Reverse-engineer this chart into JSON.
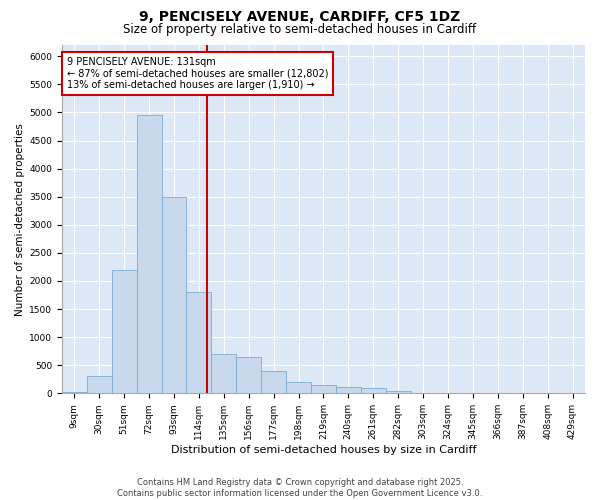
{
  "title": "9, PENCISELY AVENUE, CARDIFF, CF5 1DZ",
  "subtitle": "Size of property relative to semi-detached houses in Cardiff",
  "xlabel": "Distribution of semi-detached houses by size in Cardiff",
  "ylabel": "Number of semi-detached properties",
  "categories": [
    "9sqm",
    "30sqm",
    "51sqm",
    "72sqm",
    "93sqm",
    "114sqm",
    "135sqm",
    "156sqm",
    "177sqm",
    "198sqm",
    "219sqm",
    "240sqm",
    "261sqm",
    "282sqm",
    "303sqm",
    "324sqm",
    "345sqm",
    "366sqm",
    "387sqm",
    "408sqm",
    "429sqm"
  ],
  "values": [
    30,
    300,
    2200,
    4950,
    3500,
    1800,
    700,
    650,
    400,
    200,
    150,
    120,
    90,
    40,
    10,
    5,
    3,
    2,
    1,
    1,
    0
  ],
  "bar_color": "#c8d9ee",
  "bar_edge_color": "#7aacd4",
  "property_line_color": "#cc0000",
  "annotation_text": "9 PENCISELY AVENUE: 131sqm\n← 87% of semi-detached houses are smaller (12,802)\n13% of semi-detached houses are larger (1,910) →",
  "annotation_box_color": "#cc0000",
  "ylim": [
    0,
    6200
  ],
  "yticks": [
    0,
    500,
    1000,
    1500,
    2000,
    2500,
    3000,
    3500,
    4000,
    4500,
    5000,
    5500,
    6000
  ],
  "background_color": "#dce8f5",
  "grid_color": "#ffffff",
  "footer_text": "Contains HM Land Registry data © Crown copyright and database right 2025.\nContains public sector information licensed under the Open Government Licence v3.0.",
  "title_fontsize": 10,
  "subtitle_fontsize": 8.5,
  "axis_label_fontsize": 7.5,
  "tick_fontsize": 6.5,
  "annotation_fontsize": 7,
  "footer_fontsize": 6
}
